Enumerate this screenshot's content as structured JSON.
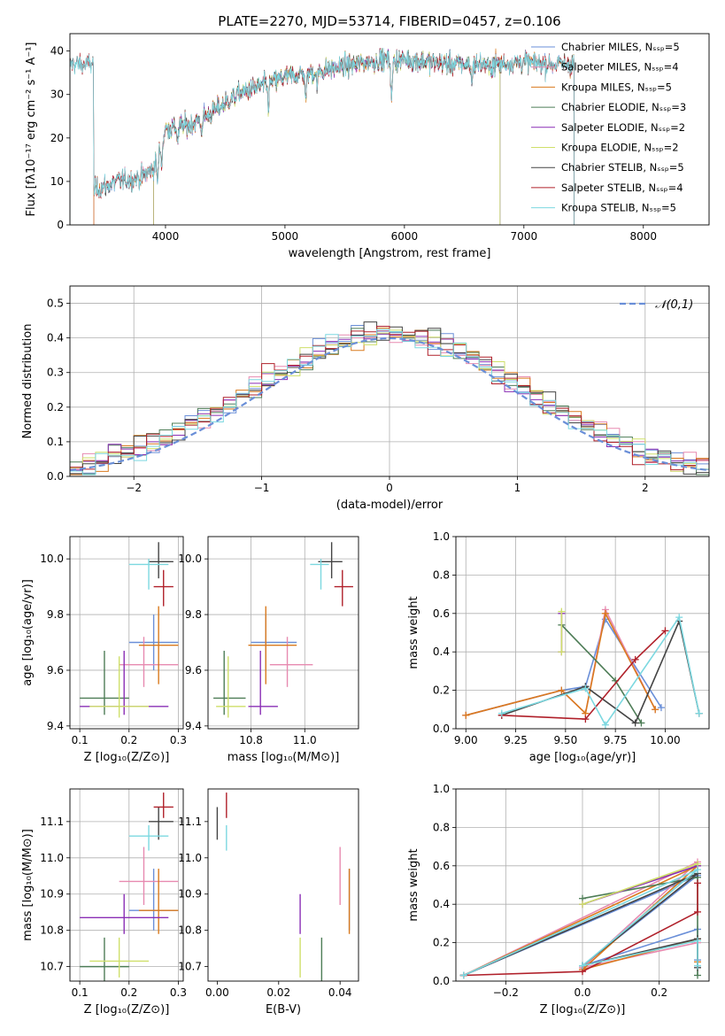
{
  "figure": {
    "title": "PLATE=2270, MJD=53714, FIBERID=0457, z=0.106"
  },
  "chart_data": [
    {
      "id": "spectrum",
      "type": "line",
      "xlabel": "wavelength [Angstrom, rest frame]",
      "ylabel": "Flux [fλ10⁻¹⁷ erg cm⁻² s⁻¹ A⁻¹]",
      "xlim": [
        3200,
        8550
      ],
      "ylim": [
        0,
        44
      ],
      "xticks": [
        4000,
        5000,
        6000,
        7000,
        8000
      ],
      "yticks": [
        0,
        10,
        20,
        30,
        40
      ],
      "grid": false,
      "legend_position": "top-right",
      "series": [
        {
          "name": "Chabrier MILES, N_SSP=5",
          "color": "#6a8fd8",
          "start": 3400,
          "end": 7420
        },
        {
          "name": "Salpeter MILES, N_SSP=4",
          "color": "#e78ab0",
          "start": 3400,
          "end": 7420
        },
        {
          "name": "Kroupa MILES, N_SSP=5",
          "color": "#d97a1e",
          "start": 3400,
          "end": 7420
        },
        {
          "name": "Chabrier ELODIE, N_SSP=3",
          "color": "#4e7d57",
          "start": 3900,
          "end": 6800
        },
        {
          "name": "Salpeter ELODIE, N_SSP=2",
          "color": "#8a2fb5",
          "start": 3900,
          "end": 6800
        },
        {
          "name": "Kroupa ELODIE, N_SSP=2",
          "color": "#cfdf6a",
          "start": 3900,
          "end": 6800
        },
        {
          "name": "Chabrier STELIB, N_SSP=5",
          "color": "#444444",
          "start": 3200,
          "end": 7420
        },
        {
          "name": "Salpeter STELIB, N_SSP=4",
          "color": "#b0202a",
          "start": 3200,
          "end": 7420
        },
        {
          "name": "Kroupa STELIB, N_SSP=5",
          "color": "#7cd8e0",
          "start": 3200,
          "end": 7420
        }
      ],
      "legend_labels": [
        "Chabrier MILES, Nₛₛₚ=5",
        "Salpeter MILES, Nₛₛₚ=4",
        "Kroupa MILES, Nₛₛₚ=5",
        "Chabrier ELODIE, Nₛₛₚ=3",
        "Salpeter ELODIE, Nₛₛₚ=2",
        "Kroupa ELODIE, Nₛₛₚ=2",
        "Chabrier STELIB, Nₛₛₚ=5",
        "Salpeter STELIB, Nₛₛₚ=4",
        "Kroupa STELIB, Nₛₛₚ=5"
      ],
      "continuum": [
        [
          3400,
          8
        ],
        [
          3600,
          10
        ],
        [
          3800,
          11
        ],
        [
          3900,
          13
        ],
        [
          4000,
          22
        ],
        [
          4200,
          23
        ],
        [
          4400,
          26
        ],
        [
          4600,
          30
        ],
        [
          4800,
          32
        ],
        [
          5000,
          34
        ],
        [
          5200,
          35
        ],
        [
          5400,
          36
        ],
        [
          5600,
          37
        ],
        [
          5800,
          38
        ],
        [
          6000,
          38
        ],
        [
          6200,
          37.5
        ],
        [
          6400,
          37
        ],
        [
          6600,
          37
        ],
        [
          6800,
          37
        ],
        [
          7000,
          37.5
        ],
        [
          7200,
          37
        ],
        [
          7420,
          37
        ]
      ]
    },
    {
      "id": "residuals",
      "type": "histogram",
      "xlabel": "(data-model)/error",
      "ylabel": "Normed distribution",
      "xlim": [
        -2.5,
        2.5
      ],
      "ylim": [
        0,
        0.55
      ],
      "xticks": [
        -2,
        -1,
        0,
        1,
        2
      ],
      "yticks": [
        0.0,
        0.1,
        0.2,
        0.3,
        0.4,
        0.5
      ],
      "grid": true,
      "legend_position": "top-right",
      "legend": "𝒩(0,1)",
      "reference_curve": {
        "name": "N(0,1)",
        "color": "#6a8fd8",
        "style": "dashed"
      },
      "bin_edges_start": -2.5,
      "bin_width": 0.1,
      "bins": 50
    },
    {
      "id": "age-vs-Z",
      "type": "scatter",
      "xlabel": "Z [log₁₀(Z/Z⊙)]",
      "ylabel": "age  [log₁₀(age/yr)]",
      "xlim": [
        0.08,
        0.31
      ],
      "ylim": [
        9.39,
        10.08
      ],
      "xticks": [
        0.1,
        0.2,
        0.3
      ],
      "yticks": [
        9.4,
        9.6,
        9.8,
        10.0
      ],
      "grid": true
    },
    {
      "id": "age-vs-mass",
      "type": "scatter",
      "xlabel": "mass [log₁₀(M/M⊙)]",
      "ylabel": "",
      "xlim": [
        10.64,
        11.2
      ],
      "ylim": [
        9.39,
        10.08
      ],
      "xticks": [
        10.8,
        11.0
      ],
      "yticks": [
        9.4,
        9.6,
        9.8,
        10.0
      ],
      "grid": true
    },
    {
      "id": "weight-vs-age",
      "type": "line",
      "xlabel": "age  [log₁₀(age/yr)]",
      "ylabel": "mass weight",
      "xlim": [
        8.95,
        10.22
      ],
      "ylim": [
        0,
        1.0
      ],
      "xticks": [
        9.0,
        9.25,
        9.5,
        9.75,
        10.0
      ],
      "yticks": [
        0.0,
        0.2,
        0.4,
        0.6,
        0.8,
        1.0
      ],
      "grid": true
    },
    {
      "id": "mass-vs-Z",
      "type": "scatter",
      "xlabel": "Z [log₁₀(Z/Z⊙)]",
      "ylabel": "mass [log₁₀(M/M⊙)]",
      "xlim": [
        0.08,
        0.31
      ],
      "ylim": [
        10.66,
        11.19
      ],
      "xticks": [
        0.1,
        0.2,
        0.3
      ],
      "yticks": [
        10.7,
        10.8,
        10.9,
        11.0,
        11.1
      ],
      "grid": true
    },
    {
      "id": "mass-vs-EBV",
      "type": "scatter",
      "xlabel": "E(B-V)",
      "ylabel": "",
      "xlim": [
        -0.003,
        0.046
      ],
      "ylim": [
        10.66,
        11.19
      ],
      "xticks": [
        0.0,
        0.02,
        0.04
      ],
      "yticks": [
        10.7,
        10.8,
        10.9,
        11.0,
        11.1
      ],
      "grid": false
    },
    {
      "id": "weight-vs-Z",
      "type": "line",
      "xlabel": "Z [log₁₀(Z/Z⊙)]",
      "ylabel": "mass weight",
      "xlim": [
        -0.33,
        0.33
      ],
      "ylim": [
        0,
        1.0
      ],
      "xticks": [
        -0.2,
        0.0,
        0.2
      ],
      "yticks": [
        0.0,
        0.2,
        0.4,
        0.6,
        0.8,
        1.0
      ],
      "grid": true
    }
  ],
  "models": [
    {
      "color": "#6a8fd8",
      "age": 9.7,
      "age_lo": 9.6,
      "age_hi": 9.8,
      "Z": 0.25,
      "Z_lo": 0.2,
      "Z_hi": 0.3,
      "mass": 10.855,
      "mass_lo": 10.8,
      "mass_hi": 10.97,
      "ebv": 0.043,
      "ebv_lo": 0.038,
      "ebv_hi": 0.048,
      "w_age": [
        [
          9.0,
          0.07
        ],
        [
          9.48,
          0.2
        ],
        [
          9.6,
          0.22
        ],
        [
          9.7,
          0.57
        ],
        [
          9.98,
          0.11
        ]
      ],
      "w_Z": [
        [
          -0.31,
          0.03
        ],
        [
          0.3,
          0.55
        ],
        [
          0.0,
          0.08
        ],
        [
          0.3,
          0.27
        ],
        [
          0.3,
          0.11
        ]
      ]
    },
    {
      "color": "#e78ab0",
      "age": 9.62,
      "age_lo": 9.54,
      "age_hi": 9.72,
      "Z": 0.23,
      "Z_lo": 0.18,
      "Z_hi": 0.3,
      "mass": 10.935,
      "mass_lo": 10.87,
      "mass_hi": 11.03,
      "ebv": 0.04,
      "ebv_lo": 0.035,
      "ebv_hi": 0.045,
      "w_age": [
        [
          9.0,
          0.07
        ],
        [
          9.48,
          0.2
        ],
        [
          9.6,
          0.08
        ],
        [
          9.7,
          0.62
        ],
        [
          9.95,
          0.1
        ]
      ],
      "w_Z": [
        [
          -0.31,
          0.03
        ],
        [
          0.3,
          0.62
        ],
        [
          0.0,
          0.07
        ],
        [
          0.3,
          0.2
        ],
        [
          0.3,
          0.08
        ]
      ]
    },
    {
      "color": "#d97a1e",
      "age": 9.69,
      "age_lo": 9.55,
      "age_hi": 9.83,
      "Z": 0.26,
      "Z_lo": 0.22,
      "Z_hi": 0.3,
      "mass": 10.855,
      "mass_lo": 10.79,
      "mass_hi": 10.97,
      "ebv": 0.043,
      "ebv_lo": 0.037,
      "ebv_hi": 0.048,
      "w_age": [
        [
          9.0,
          0.07
        ],
        [
          9.48,
          0.2
        ],
        [
          9.6,
          0.08
        ],
        [
          9.7,
          0.6
        ],
        [
          9.95,
          0.1
        ]
      ],
      "w_Z": [
        [
          -0.31,
          0.03
        ],
        [
          0.3,
          0.6
        ],
        [
          0.0,
          0.06
        ],
        [
          0.3,
          0.22
        ],
        [
          0.3,
          0.1
        ]
      ]
    },
    {
      "color": "#4e7d57",
      "age": 9.5,
      "age_lo": 9.44,
      "age_hi": 9.67,
      "Z": 0.15,
      "Z_lo": 0.1,
      "Z_hi": 0.2,
      "mass": 10.7,
      "mass_lo": 10.66,
      "mass_hi": 10.78,
      "ebv": 0.034,
      "ebv_lo": 0.031,
      "ebv_hi": 0.037,
      "w_age": [
        [
          9.48,
          0.54
        ],
        [
          9.75,
          0.25
        ],
        [
          9.88,
          0.03
        ]
      ],
      "w_Z": [
        [
          0.0,
          0.43
        ],
        [
          0.3,
          0.54
        ],
        [
          0.3,
          0.03
        ]
      ]
    },
    {
      "color": "#8a2fb5",
      "age": 9.47,
      "age_lo": 9.44,
      "age_hi": 9.67,
      "Z": 0.19,
      "Z_lo": 0.1,
      "Z_hi": 0.28,
      "mass": 10.835,
      "mass_lo": 10.79,
      "mass_hi": 10.9,
      "ebv": 0.027,
      "ebv_lo": 0.024,
      "ebv_hi": 0.03,
      "w_age": [
        [
          9.48,
          0.6
        ],
        [
          9.48,
          0.4
        ]
      ],
      "w_Z": [
        [
          0.0,
          0.4
        ],
        [
          0.3,
          0.6
        ]
      ]
    },
    {
      "color": "#cfdf6a",
      "age": 9.47,
      "age_lo": 9.43,
      "age_hi": 9.65,
      "Z": 0.18,
      "Z_lo": 0.12,
      "Z_hi": 0.24,
      "mass": 10.715,
      "mass_lo": 10.67,
      "mass_hi": 10.78,
      "ebv": 0.027,
      "ebv_lo": 0.024,
      "ebv_hi": 0.03,
      "w_age": [
        [
          9.48,
          0.61
        ],
        [
          9.48,
          0.4
        ]
      ],
      "w_Z": [
        [
          0.0,
          0.4
        ],
        [
          0.3,
          0.61
        ]
      ]
    },
    {
      "color": "#444444",
      "age": 9.99,
      "age_lo": 9.93,
      "age_hi": 10.06,
      "Z": 0.26,
      "Z_lo": 0.24,
      "Z_hi": 0.29,
      "mass": 11.1,
      "mass_lo": 11.05,
      "mass_hi": 11.14,
      "ebv": 0.0,
      "ebv_lo": -0.002,
      "ebv_hi": 0.002,
      "w_age": [
        [
          9.18,
          0.07
        ],
        [
          9.6,
          0.22
        ],
        [
          9.85,
          0.03
        ],
        [
          10.07,
          0.56
        ],
        [
          10.17,
          0.08
        ]
      ],
      "w_Z": [
        [
          -0.31,
          0.03
        ],
        [
          0.3,
          0.56
        ],
        [
          0.0,
          0.08
        ],
        [
          0.3,
          0.22
        ],
        [
          0.3,
          0.07
        ]
      ]
    },
    {
      "color": "#b0202a",
      "age": 9.9,
      "age_lo": 9.83,
      "age_hi": 9.96,
      "Z": 0.27,
      "Z_lo": 0.25,
      "Z_hi": 0.29,
      "mass": 11.14,
      "mass_lo": 11.11,
      "mass_hi": 11.18,
      "ebv": 0.003,
      "ebv_lo": 0.002,
      "ebv_hi": 0.004,
      "w_age": [
        [
          9.18,
          0.07
        ],
        [
          9.6,
          0.05
        ],
        [
          9.85,
          0.36
        ],
        [
          10.0,
          0.51
        ]
      ],
      "w_Z": [
        [
          -0.31,
          0.03
        ],
        [
          0.0,
          0.05
        ],
        [
          0.3,
          0.36
        ],
        [
          0.3,
          0.51
        ]
      ]
    },
    {
      "color": "#7cd8e0",
      "age": 9.98,
      "age_lo": 9.89,
      "age_hi": 10.0,
      "Z": 0.24,
      "Z_lo": 0.2,
      "Z_hi": 0.28,
      "mass": 11.06,
      "mass_lo": 11.02,
      "mass_hi": 11.09,
      "ebv": 0.003,
      "ebv_lo": 0.002,
      "ebv_hi": 0.004,
      "w_age": [
        [
          9.18,
          0.08
        ],
        [
          9.6,
          0.21
        ],
        [
          9.7,
          0.02
        ],
        [
          10.07,
          0.58
        ],
        [
          10.17,
          0.08
        ]
      ],
      "w_Z": [
        [
          -0.31,
          0.03
        ],
        [
          0.3,
          0.58
        ],
        [
          0.0,
          0.08
        ],
        [
          0.3,
          0.21
        ],
        [
          0.3,
          0.08
        ]
      ]
    }
  ]
}
